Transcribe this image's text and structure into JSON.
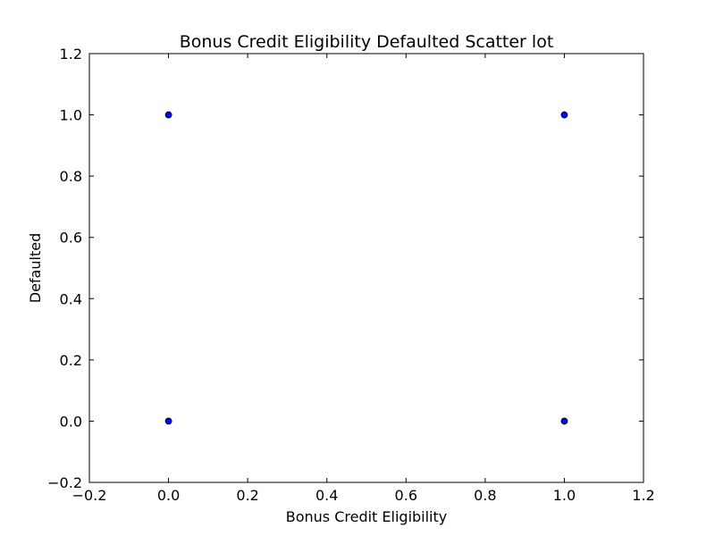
{
  "chart_data": {
    "type": "scatter",
    "title": "Bonus Credit Eligibility Defaulted Scatter lot",
    "xlabel": "Bonus Credit Eligibility",
    "ylabel": "Defaulted",
    "xlim": [
      -0.2,
      1.2
    ],
    "ylim": [
      -0.2,
      1.2
    ],
    "x_ticks": [
      -0.2,
      0.0,
      0.2,
      0.4,
      0.6,
      0.8,
      1.0,
      1.2
    ],
    "y_ticks": [
      -0.2,
      0.0,
      0.2,
      0.4,
      0.6,
      0.8,
      1.0,
      1.2
    ],
    "x_tick_labels": [
      "−0.2",
      "0.0",
      "0.2",
      "0.4",
      "0.6",
      "0.8",
      "1.0",
      "1.2"
    ],
    "y_tick_labels": [
      "−0.2",
      "0.0",
      "0.2",
      "0.4",
      "0.6",
      "0.8",
      "1.0",
      "1.2"
    ],
    "grid": false,
    "legend": false,
    "marker_color": "#0000ff",
    "marker_edge_color": "#000000",
    "points": [
      {
        "x": 0,
        "y": 1
      },
      {
        "x": 1,
        "y": 1
      },
      {
        "x": 0,
        "y": 0
      },
      {
        "x": 1,
        "y": 0
      }
    ]
  }
}
